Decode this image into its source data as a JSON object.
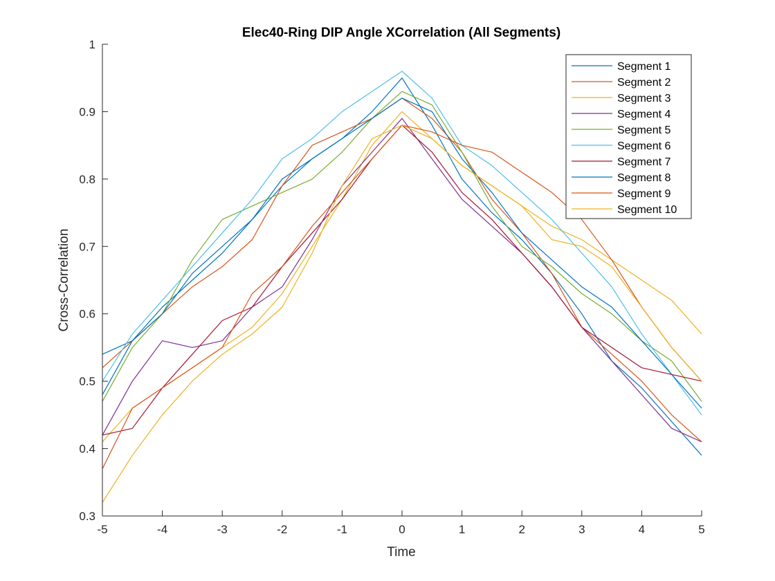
{
  "chart_data": {
    "type": "line",
    "title": "Elec40-Ring DIP Angle XCorrelation (All Segments)",
    "xlabel": "Time",
    "ylabel": "Cross-Correlation",
    "xlim": [
      -5,
      5
    ],
    "ylim": [
      0.3,
      1
    ],
    "xticks": [
      "-5",
      "-4",
      "-3",
      "-2",
      "-1",
      "0",
      "1",
      "2",
      "3",
      "4",
      "5"
    ],
    "yticks": [
      "0.3",
      "0.4",
      "0.5",
      "0.6",
      "0.7",
      "0.8",
      "0.9",
      "1"
    ],
    "grid": false,
    "legend_position": "top-right",
    "x": [
      -5,
      -4.5,
      -4,
      -3.5,
      -3,
      -2.5,
      -2,
      -1.5,
      -1,
      -0.5,
      0,
      0.5,
      1,
      1.5,
      2,
      2.5,
      3,
      3.5,
      4,
      4.5,
      5
    ],
    "series": [
      {
        "name": "Segment 1",
        "color": "#0072BD",
        "values": [
          0.54,
          0.56,
          0.61,
          0.65,
          0.69,
          0.74,
          0.79,
          0.83,
          0.86,
          0.9,
          0.95,
          0.88,
          0.8,
          0.75,
          0.71,
          0.66,
          0.6,
          0.53,
          0.49,
          0.44,
          0.39
        ]
      },
      {
        "name": "Segment 2",
        "color": "#D95319",
        "values": [
          0.52,
          0.56,
          0.6,
          0.64,
          0.67,
          0.71,
          0.79,
          0.85,
          0.87,
          0.89,
          0.92,
          0.89,
          0.84,
          0.77,
          0.72,
          0.66,
          0.58,
          0.54,
          0.5,
          0.45,
          0.41
        ]
      },
      {
        "name": "Segment 3",
        "color": "#EDB120",
        "values": [
          0.41,
          0.46,
          0.49,
          0.52,
          0.55,
          0.58,
          0.63,
          0.7,
          0.77,
          0.85,
          0.9,
          0.86,
          0.82,
          0.79,
          0.76,
          0.73,
          0.71,
          0.68,
          0.65,
          0.62,
          0.57
        ]
      },
      {
        "name": "Segment 4",
        "color": "#7E2F8E",
        "values": [
          0.42,
          0.5,
          0.56,
          0.55,
          0.56,
          0.61,
          0.64,
          0.71,
          0.79,
          0.84,
          0.89,
          0.83,
          0.77,
          0.73,
          0.69,
          0.64,
          0.58,
          0.53,
          0.48,
          0.43,
          0.41
        ]
      },
      {
        "name": "Segment 5",
        "color": "#77AC30",
        "values": [
          0.47,
          0.55,
          0.6,
          0.68,
          0.74,
          0.76,
          0.78,
          0.8,
          0.84,
          0.89,
          0.93,
          0.91,
          0.84,
          0.76,
          0.7,
          0.67,
          0.63,
          0.6,
          0.56,
          0.53,
          0.47
        ]
      },
      {
        "name": "Segment 6",
        "color": "#4DBEEE",
        "values": [
          0.5,
          0.57,
          0.62,
          0.67,
          0.72,
          0.77,
          0.83,
          0.86,
          0.9,
          0.93,
          0.96,
          0.92,
          0.85,
          0.82,
          0.78,
          0.74,
          0.69,
          0.64,
          0.57,
          0.51,
          0.45
        ]
      },
      {
        "name": "Segment 7",
        "color": "#A2142F",
        "values": [
          0.42,
          0.43,
          0.49,
          0.54,
          0.59,
          0.61,
          0.67,
          0.72,
          0.77,
          0.83,
          0.88,
          0.84,
          0.78,
          0.74,
          0.69,
          0.64,
          0.58,
          0.55,
          0.52,
          0.51,
          0.5
        ]
      },
      {
        "name": "Segment 8",
        "color": "#0072BD",
        "values": [
          0.48,
          0.56,
          0.6,
          0.66,
          0.7,
          0.74,
          0.8,
          0.83,
          0.86,
          0.89,
          0.92,
          0.9,
          0.83,
          0.78,
          0.72,
          0.68,
          0.64,
          0.61,
          0.56,
          0.51,
          0.46
        ]
      },
      {
        "name": "Segment 9",
        "color": "#D95319",
        "values": [
          0.37,
          0.46,
          0.49,
          0.52,
          0.55,
          0.63,
          0.67,
          0.73,
          0.78,
          0.83,
          0.88,
          0.87,
          0.85,
          0.84,
          0.81,
          0.78,
          0.74,
          0.68,
          0.61,
          0.55,
          0.5
        ]
      },
      {
        "name": "Segment 10",
        "color": "#EDB120",
        "values": [
          0.32,
          0.39,
          0.45,
          0.5,
          0.54,
          0.57,
          0.61,
          0.69,
          0.79,
          0.86,
          0.88,
          0.86,
          0.82,
          0.79,
          0.76,
          0.71,
          0.7,
          0.67,
          0.61,
          0.55,
          0.5
        ]
      }
    ]
  }
}
